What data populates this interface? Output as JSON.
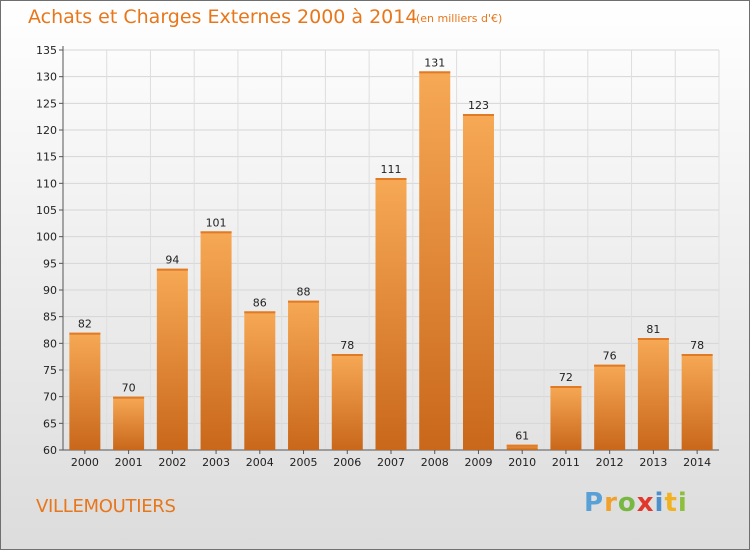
{
  "header": {
    "title": "Achats et Charges Externes 2000 à 2014",
    "subtitle": "(en milliers d'€)"
  },
  "footer": {
    "place": "VILLEMOUTIERS",
    "logo": [
      "P",
      "r",
      "o",
      "x",
      "i",
      "t",
      "i"
    ]
  },
  "colors": {
    "accent": "#e8761a",
    "bar_light": "#f7a955",
    "bar_dark": "#c9671a"
  },
  "chart_data": {
    "type": "bar",
    "title": "Achats et Charges Externes 2000 à 2014",
    "subtitle": "(en milliers d'€)",
    "xlabel": "",
    "ylabel": "",
    "categories": [
      "2000",
      "2001",
      "2002",
      "2003",
      "2004",
      "2005",
      "2006",
      "2007",
      "2008",
      "2009",
      "2010",
      "2011",
      "2012",
      "2013",
      "2014"
    ],
    "values": [
      82,
      70,
      94,
      101,
      86,
      88,
      78,
      111,
      131,
      123,
      61,
      72,
      76,
      81,
      78
    ],
    "ylim": [
      60,
      135
    ],
    "yticks": [
      60,
      65,
      70,
      75,
      80,
      85,
      90,
      95,
      100,
      105,
      110,
      115,
      120,
      125,
      130,
      135
    ],
    "grid": true
  }
}
